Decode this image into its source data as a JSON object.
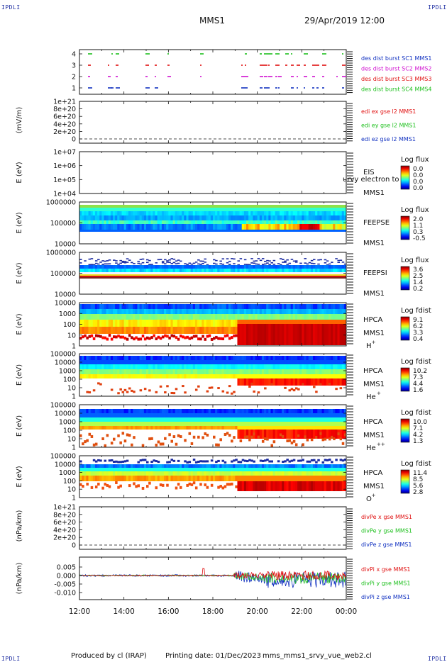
{
  "header": {
    "corner_tl": "IPDLI",
    "corner_tr": "IPDLI",
    "corner_bl": "IPDLI",
    "corner_br": "IPDLI",
    "spacecraft": "MMS1",
    "datetime": "29/Apr/2019 12:00"
  },
  "footer": {
    "produced_by": "Produced by cl (IRAP)",
    "printing_date": "Printing date: 01/Dec/2023",
    "filename": "mms_mms1_srvy_vue_web2.cl"
  },
  "chart_data": [
    {
      "id": "burst",
      "type": "scatter",
      "yticks": [
        "4",
        "3",
        "2",
        "1"
      ],
      "legend": [
        {
          "text": "des dist burst SC1 MMS1",
          "color": "#1030c0"
        },
        {
          "text": "des dist burst SC2 MMS2",
          "color": "#d010d0"
        },
        {
          "text": "des dist burst SC3 MMS3",
          "color": "#e01010"
        },
        {
          "text": "des dist burst SC4 MMS4",
          "color": "#20c020"
        }
      ]
    },
    {
      "id": "edi",
      "type": "line",
      "ylabel": "(mV/m)",
      "yticks": [
        "1e+21",
        "8e+20",
        "6e+20",
        "4e+20",
        "2e+20",
        "0"
      ],
      "legend": [
        {
          "text": "edi ex gse l2 MMS1",
          "color": "#e01010"
        },
        {
          "text": "edi ey gse l2 MMS1",
          "color": "#20c020"
        },
        {
          "text": "edi ez gse l2 MMS1",
          "color": "#1030c0"
        }
      ]
    },
    {
      "id": "eis",
      "type": "heatmap",
      "ylabel": "E (eV)",
      "yticks": [
        "1e+07",
        "1e+06",
        "1e+05",
        "1e+04"
      ],
      "label": "EIS",
      "sub": "MMS1",
      "sup": "",
      "overlay": "urvy electron to",
      "cbar_title": "Log flux",
      "cbar_ticks": [
        "0.0",
        "0.0",
        "0.0",
        "0.0"
      ]
    },
    {
      "id": "feepse",
      "type": "heatmap",
      "ylabel": "E (eV)",
      "yticks": [
        "1000000",
        "100000",
        "10000"
      ],
      "label": "FEEPSE",
      "sub": "MMS1",
      "sup": "",
      "cbar_title": "Log flux",
      "cbar_ticks": [
        "2.0",
        "1.1",
        "0.3",
        "-0.5"
      ]
    },
    {
      "id": "feepsi",
      "type": "heatmap",
      "ylabel": "E (eV)",
      "yticks": [
        "1000000",
        "100000",
        "10000"
      ],
      "label": "FEEPSI",
      "sub": "MMS1",
      "sup": "",
      "cbar_title": "Log flux",
      "cbar_ticks": [
        "3.6",
        "2.5",
        "1.4",
        "0.2"
      ]
    },
    {
      "id": "hpca_h",
      "type": "heatmap",
      "ylabel": "E (eV)",
      "yticks": [
        "10000",
        "1000",
        "100",
        "10",
        "1"
      ],
      "label": "HPCA",
      "sub": "MMS1",
      "ion": "H",
      "sup": "+",
      "cbar_title": "Log fdist",
      "cbar_ticks": [
        "9.1",
        "6.2",
        "3.3",
        "0.4"
      ]
    },
    {
      "id": "hpca_he",
      "type": "heatmap",
      "ylabel": "E (eV)",
      "yticks": [
        "100000",
        "10000",
        "1000",
        "100",
        "10",
        "1"
      ],
      "label": "HPCA",
      "sub": "MMS1",
      "ion": "He",
      "sup": "+",
      "cbar_title": "Log fdist",
      "cbar_ticks": [
        "10.2",
        "7.3",
        "4.4",
        "1.6"
      ]
    },
    {
      "id": "hpca_hepp",
      "type": "heatmap",
      "ylabel": "E (eV)",
      "yticks": [
        "100000",
        "10000",
        "1000",
        "100",
        "10",
        "1"
      ],
      "label": "HPCA",
      "sub": "MMS1",
      "ion": "He",
      "sup": "++",
      "cbar_title": "Log fdist",
      "cbar_ticks": [
        "10.0",
        "7.1",
        "4.2",
        "1.3"
      ]
    },
    {
      "id": "hpca_o",
      "type": "heatmap",
      "ylabel": "E (eV)",
      "yticks": [
        "100000",
        "10000",
        "1000",
        "100",
        "10",
        "1"
      ],
      "label": "HPCA",
      "sub": "MMS1",
      "ion": "O",
      "sup": "+",
      "cbar_title": "Log fdist",
      "cbar_ticks": [
        "11.4",
        "8.5",
        "5.6",
        "2.8"
      ]
    },
    {
      "id": "divpe",
      "type": "line",
      "ylabel": "(nPa/km)",
      "yticks": [
        "1e+21",
        "8e+20",
        "6e+20",
        "4e+20",
        "2e+20",
        "0"
      ],
      "legend": [
        {
          "text": "divPe x gse MMS1",
          "color": "#e01010"
        },
        {
          "text": "divPe y gse MMS1",
          "color": "#20c020"
        },
        {
          "text": "divPe z gse MMS1",
          "color": "#1030c0"
        }
      ]
    },
    {
      "id": "divpi",
      "type": "line",
      "ylabel": "(nPa/km)",
      "yticks": [
        "0.005",
        "0.000",
        "-0.005",
        "-0.010"
      ],
      "legend": [
        {
          "text": "divPi x gse MMS1",
          "color": "#e01010"
        },
        {
          "text": "divPi y gse MMS1",
          "color": "#20c020"
        },
        {
          "text": "divPi z gse MMS1",
          "color": "#1030c0"
        }
      ]
    }
  ],
  "xaxis": {
    "ticks": [
      "12:00",
      "14:00",
      "16:00",
      "18:00",
      "20:00",
      "22:00",
      "00:00"
    ]
  }
}
